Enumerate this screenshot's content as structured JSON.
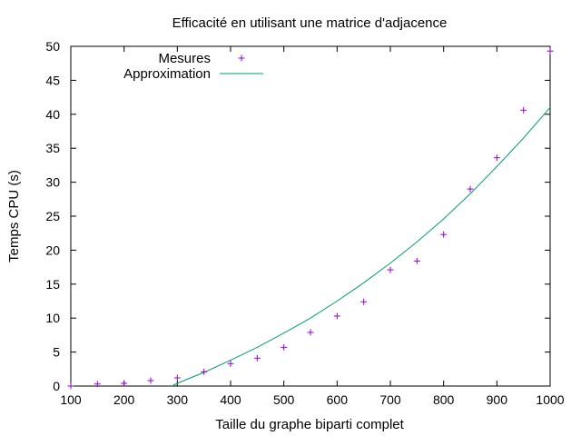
{
  "chart_data": {
    "type": "scatter",
    "title": "Efficacité en utilisant une matrice d'adjacence",
    "xlabel": "Taille du graphe biparti complet",
    "ylabel": "Temps CPU (s)",
    "xlim": [
      100,
      1000
    ],
    "ylim": [
      0,
      50
    ],
    "xticks": [
      100,
      200,
      300,
      400,
      500,
      600,
      700,
      800,
      900,
      1000
    ],
    "yticks": [
      0,
      5,
      10,
      15,
      20,
      25,
      30,
      35,
      40,
      45,
      50
    ],
    "grid": false,
    "legend_position": "top-left",
    "series": [
      {
        "name": "Mesures",
        "kind": "points",
        "marker": "plus",
        "color": "#9400d3",
        "x": [
          100,
          150,
          200,
          250,
          300,
          350,
          400,
          450,
          500,
          550,
          600,
          650,
          700,
          750,
          800,
          850,
          900,
          950,
          1000
        ],
        "y": [
          0.0,
          0.3,
          0.4,
          0.8,
          1.2,
          2.1,
          3.3,
          4.1,
          5.7,
          7.9,
          10.3,
          12.4,
          17.1,
          18.4,
          22.3,
          29.0,
          33.6,
          40.6,
          49.3
        ]
      },
      {
        "name": "Approximation",
        "kind": "line",
        "color": "#009e73",
        "x": [
          290,
          300,
          350,
          400,
          450,
          500,
          550,
          600,
          650,
          700,
          750,
          800,
          850,
          900,
          950,
          1000
        ],
        "y": [
          0.0,
          0.4,
          2.0,
          3.8,
          5.7,
          7.8,
          10.0,
          12.5,
          15.2,
          18.1,
          21.2,
          24.6,
          28.3,
          32.3,
          36.5,
          41.0
        ]
      }
    ]
  }
}
